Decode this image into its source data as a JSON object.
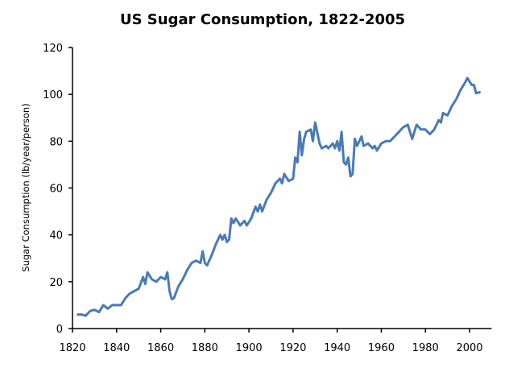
{
  "chart_data": {
    "type": "line",
    "title": "US Sugar Consumption, 1822-2005",
    "xlabel": "",
    "ylabel": "Sugar Consumption (lb/year/person)",
    "xlim": [
      1820,
      2010
    ],
    "ylim": [
      0,
      120
    ],
    "xticks": [
      1820,
      1840,
      1860,
      1880,
      1900,
      1920,
      1940,
      1960,
      1980,
      2000
    ],
    "yticks": [
      0,
      20,
      40,
      60,
      80,
      100,
      120
    ],
    "grid": false,
    "legend": "none",
    "line_color": "#4a7ab5",
    "series": [
      {
        "x": [
          1822,
          1824,
          1826,
          1828,
          1830,
          1832,
          1834,
          1836,
          1838,
          1840,
          1842,
          1844,
          1846,
          1848,
          1850,
          1852,
          1853,
          1854,
          1856,
          1858,
          1860,
          1862,
          1863,
          1864,
          1865,
          1866,
          1868,
          1870,
          1872,
          1874,
          1876,
          1878,
          1879,
          1880,
          1881,
          1883,
          1885,
          1887,
          1888,
          1889,
          1890,
          1891,
          1892,
          1893,
          1894,
          1896,
          1898,
          1899,
          1901,
          1903,
          1904,
          1905,
          1906,
          1908,
          1910,
          1912,
          1914,
          1915,
          1916,
          1918,
          1920,
          1921,
          1922,
          1923,
          1924,
          1925,
          1926,
          1928,
          1929,
          1930,
          1932,
          1933,
          1935,
          1936,
          1938,
          1939,
          1940,
          1941,
          1942,
          1943,
          1944,
          1945,
          1946,
          1947,
          1948,
          1949,
          1950,
          1951,
          1952,
          1954,
          1956,
          1957,
          1958,
          1960,
          1962,
          1964,
          1966,
          1968,
          1970,
          1972,
          1974,
          1975,
          1976,
          1978,
          1980,
          1982,
          1984,
          1986,
          1987,
          1988,
          1990,
          1992,
          1994,
          1996,
          1998,
          1999,
          2001,
          2002,
          2003,
          2005
        ],
        "y": [
          6,
          6,
          5.5,
          7.5,
          8,
          7,
          10,
          8.5,
          10,
          10,
          10,
          13,
          15,
          16,
          17,
          22,
          19,
          24,
          21,
          20,
          22,
          21,
          24,
          16,
          12.5,
          13,
          18,
          21,
          25,
          28,
          29,
          28,
          33,
          28,
          27,
          31,
          36,
          40,
          38,
          40,
          37,
          38,
          47,
          45,
          47,
          44,
          46,
          44,
          47,
          52,
          50,
          53,
          50,
          55,
          58,
          62,
          64,
          62,
          66,
          63,
          64,
          73,
          71,
          84,
          74,
          81,
          84,
          85,
          80,
          88,
          79,
          77,
          78,
          77,
          79,
          77,
          80,
          76,
          84,
          71,
          70,
          73,
          65,
          66,
          81,
          78,
          80,
          82,
          78,
          79,
          77,
          78,
          76,
          79,
          80,
          80,
          82,
          84,
          86,
          87,
          81,
          84,
          87,
          85,
          85,
          83,
          85,
          89,
          88,
          92,
          91,
          95,
          98,
          102,
          105,
          107,
          104,
          104,
          100.5,
          101
        ]
      }
    ]
  }
}
